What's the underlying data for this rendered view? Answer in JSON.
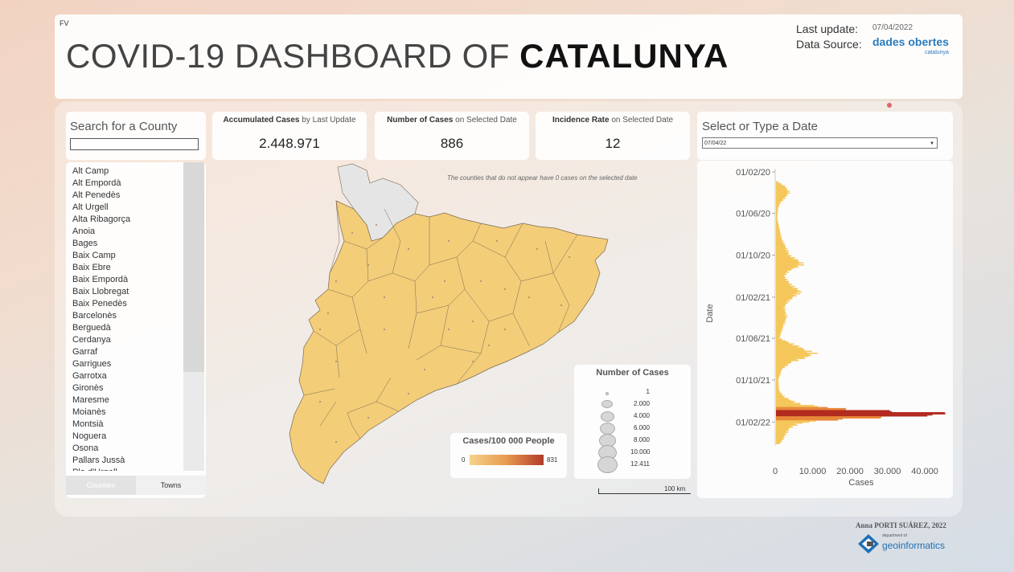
{
  "header": {
    "corner_tag": "FV",
    "title_light": "COVID-19 DASHBOARD OF",
    "title_bold": "CATALUNYA",
    "last_update_label": "Last update:",
    "last_update_value": "07/04/2022",
    "data_source_label": "Data Source:",
    "data_source_logo": "dades obertes",
    "data_source_logo_sub": "catalunya"
  },
  "search": {
    "label": "Search for a County",
    "value": ""
  },
  "county_list": [
    "Alt Camp",
    "Alt Empordà",
    "Alt Penedès",
    "Alt Urgell",
    "Alta Ribagorça",
    "Anoia",
    "Bages",
    "Baix Camp",
    "Baix Ebre",
    "Baix Empordà",
    "Baix Llobregat",
    "Baix Penedès",
    "Barcelonès",
    "Berguedà",
    "Cerdanya",
    "Garraf",
    "Garrigues",
    "Garrotxa",
    "Gironès",
    "Maresme",
    "Moianès",
    "Montsià",
    "Noguera",
    "Osona",
    "Pallars Jussà",
    "Pla d'Urgell"
  ],
  "list_tabs": {
    "counties": "Counties",
    "towns": "Towns"
  },
  "kpis": [
    {
      "label_bold": "Accumulated Cases",
      "label_rest": " by Last Update",
      "value": "2.448.971"
    },
    {
      "label_bold": "Number of Cases",
      "label_rest": " on Selected Date",
      "value": "886"
    },
    {
      "label_bold": "Incidence Rate",
      "label_rest": " on Selected Date",
      "value": "12"
    }
  ],
  "map": {
    "note": "The counties that do not appear have 0 cases on the selected date",
    "fill_color": "#f3cd78",
    "missing_color": "#e5e5e5",
    "border_color": "#7a6a55"
  },
  "legend_rate": {
    "title": "Cases/100 000 People",
    "min": "0",
    "max": "831"
  },
  "legend_size": {
    "title": "Number of Cases",
    "labels": [
      "1",
      "2.000",
      "4.000",
      "6.000",
      "8.000",
      "10.000",
      "12.411"
    ]
  },
  "scale": {
    "label": "100 km"
  },
  "date_selector": {
    "label": "Select or Type a Date",
    "value": "07/04/22"
  },
  "chart_data": {
    "type": "bar",
    "orientation": "horizontal",
    "ylabel": "Date",
    "xlabel": "Cases",
    "y_ticks": [
      "01/02/20",
      "01/06/20",
      "01/10/20",
      "01/02/21",
      "01/06/21",
      "01/10/21",
      "01/02/22"
    ],
    "x_ticks": [
      "0",
      "10.000",
      "20.000",
      "30.000",
      "40.000"
    ],
    "xlim": [
      0,
      46000
    ],
    "ylim": [
      "2020-02-01",
      "2022-04-07"
    ],
    "colors": {
      "low": "#f5c75a",
      "mid": "#e8883a",
      "high": "#b22a1e"
    },
    "series": [
      {
        "values": [
          [
            "2020-03-01",
            500
          ],
          [
            "2020-03-15",
            2500
          ],
          [
            "2020-04-01",
            3500
          ],
          [
            "2020-04-15",
            2500
          ],
          [
            "2020-05-01",
            1200
          ],
          [
            "2020-05-15",
            600
          ],
          [
            "2020-06-15",
            300
          ],
          [
            "2020-07-15",
            900
          ],
          [
            "2020-08-15",
            1500
          ],
          [
            "2020-09-01",
            2300
          ],
          [
            "2020-09-15",
            2900
          ],
          [
            "2020-10-01",
            3500
          ],
          [
            "2020-10-15",
            5500
          ],
          [
            "2020-10-25",
            7000
          ],
          [
            "2020-11-01",
            6500
          ],
          [
            "2020-11-15",
            3500
          ],
          [
            "2020-12-01",
            2200
          ],
          [
            "2020-12-15",
            3000
          ],
          [
            "2021-01-01",
            4500
          ],
          [
            "2021-01-15",
            6500
          ],
          [
            "2021-01-25",
            5500
          ],
          [
            "2021-02-10",
            3500
          ],
          [
            "2021-03-01",
            2200
          ],
          [
            "2021-04-01",
            2800
          ],
          [
            "2021-05-01",
            1800
          ],
          [
            "2021-06-01",
            900
          ],
          [
            "2021-07-01",
            7000
          ],
          [
            "2021-07-15",
            10000
          ],
          [
            "2021-07-25",
            8500
          ],
          [
            "2021-08-10",
            4000
          ],
          [
            "2021-09-01",
            1500
          ],
          [
            "2021-10-01",
            600
          ],
          [
            "2021-11-01",
            800
          ],
          [
            "2021-11-20",
            2200
          ],
          [
            "2021-12-10",
            6000
          ],
          [
            "2021-12-20",
            13000
          ],
          [
            "2021-12-28",
            22000
          ],
          [
            "2022-01-04",
            40000
          ],
          [
            "2022-01-08",
            47000
          ],
          [
            "2022-01-14",
            38000
          ],
          [
            "2022-01-20",
            25000
          ],
          [
            "2022-01-28",
            12000
          ],
          [
            "2022-02-05",
            6000
          ],
          [
            "2022-02-20",
            3500
          ],
          [
            "2022-03-10",
            2500
          ],
          [
            "2022-03-25",
            1800
          ],
          [
            "2022-04-07",
            886
          ]
        ]
      }
    ]
  },
  "credit": {
    "author": "Anna PORTI SUÁREZ, 2022",
    "logo_small": "department of",
    "logo": "geoinformatics"
  }
}
